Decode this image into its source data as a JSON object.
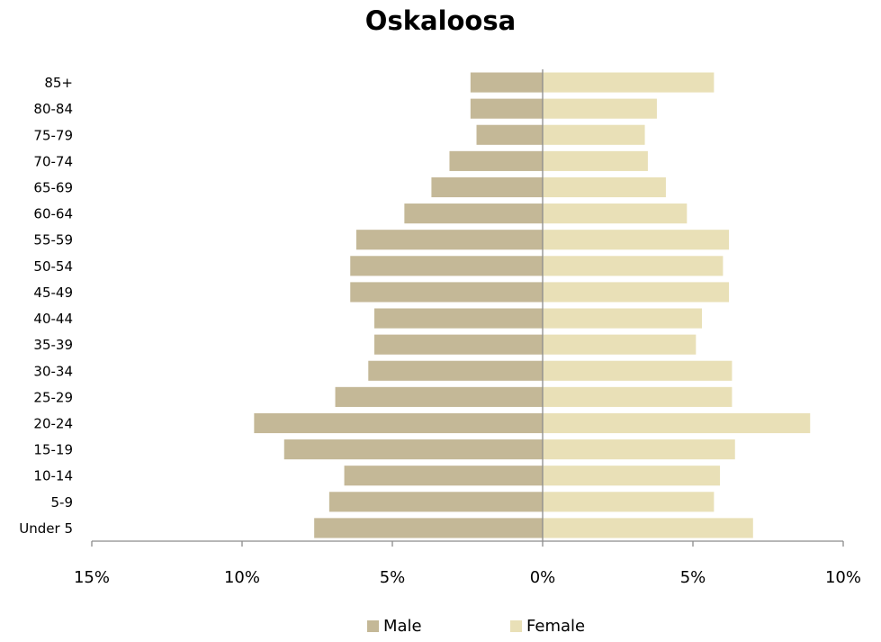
{
  "chart_data": {
    "type": "bar",
    "orientation": "horizontal",
    "title": "Oskaloosa",
    "categories": [
      "85+",
      "80-84",
      "75-79",
      "70-74",
      "65-69",
      "60-64",
      "55-59",
      "50-54",
      "45-49",
      "40-44",
      "35-39",
      "30-34",
      "25-29",
      "20-24",
      "15-19",
      "10-14",
      "5-9",
      "Under 5"
    ],
    "series": [
      {
        "name": "Male",
        "color": "#c4b897",
        "values": [
          -2.4,
          -2.4,
          -2.2,
          -3.1,
          -3.7,
          -4.6,
          -6.2,
          -6.4,
          -6.4,
          -5.6,
          -5.6,
          -5.8,
          -6.9,
          -9.6,
          -8.6,
          -6.6,
          -7.1,
          -7.6
        ]
      },
      {
        "name": "Female",
        "color": "#e9e0b7",
        "values": [
          5.7,
          3.8,
          3.4,
          3.5,
          4.1,
          4.8,
          6.2,
          6.0,
          6.2,
          5.3,
          5.1,
          6.3,
          6.3,
          8.9,
          6.4,
          5.9,
          5.7,
          7.0
        ]
      }
    ],
    "xlim": [
      -15,
      10
    ],
    "x_ticks": [
      -15,
      -10,
      -5,
      0,
      5,
      10
    ],
    "x_tick_labels": [
      "15%",
      "10%",
      "5%",
      "0%",
      "5%",
      "10%"
    ],
    "xlabel": "",
    "ylabel": "",
    "grid": false,
    "legend_position": "bottom"
  }
}
